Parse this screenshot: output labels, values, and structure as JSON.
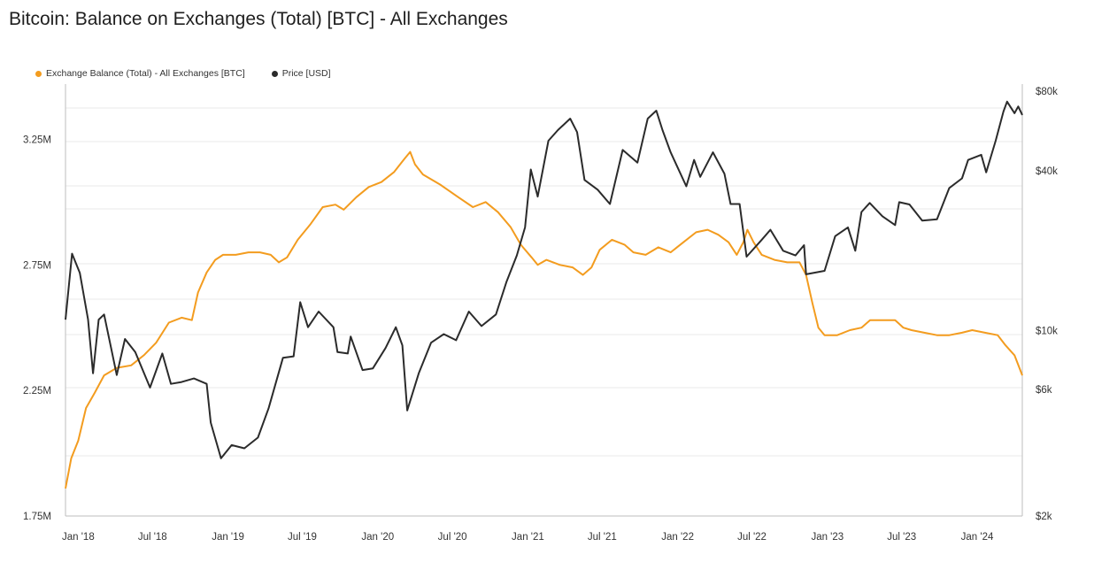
{
  "header": {
    "title": "Bitcoin: Balance on Exchanges (Total) [BTC] - All Exchanges"
  },
  "colors": {
    "balance": "#F39C1F",
    "price": "#2B2B2B",
    "grid": "#EAEAEA",
    "axis": "#BDBDBD"
  },
  "chart_data": {
    "type": "line",
    "title": "Bitcoin: Balance on Exchanges (Total) [BTC] - All Exchanges",
    "x_tick_labels": [
      "Jan '18",
      "Jul '18",
      "Jan '19",
      "Jul '19",
      "Jan '20",
      "Jul '20",
      "Jan '21",
      "Jul '21",
      "Jan '22",
      "Jul '22",
      "Jan '23",
      "Jul '23",
      "Jan '24"
    ],
    "x_range": [
      "2017-12-01",
      "2024-04-20"
    ],
    "y_left": {
      "ticks": [
        1.75,
        2.25,
        2.75,
        3.25
      ],
      "tick_labels": [
        "1.75M",
        "2.25M",
        "2.75M",
        "3.25M"
      ],
      "range": [
        1.75,
        3.47
      ]
    },
    "y_right": {
      "log": true,
      "ticks": [
        2000,
        6000,
        10000,
        40000,
        80000
      ],
      "tick_labels": [
        "$2k",
        "$6k",
        "$10k",
        "$40k",
        "$80k"
      ],
      "range": [
        2000,
        85000
      ]
    },
    "series": [
      {
        "name": "Exchange Balance (Total) - All Exchanges [BTC]",
        "axis": "left",
        "unit": "M BTC",
        "points": [
          [
            "2017-12-01",
            1.86
          ],
          [
            "2017-12-15",
            1.98
          ],
          [
            "2018-01-01",
            2.05
          ],
          [
            "2018-01-20",
            2.18
          ],
          [
            "2018-02-10",
            2.24
          ],
          [
            "2018-03-05",
            2.31
          ],
          [
            "2018-04-05",
            2.34
          ],
          [
            "2018-05-10",
            2.35
          ],
          [
            "2018-06-10",
            2.39
          ],
          [
            "2018-07-10",
            2.44
          ],
          [
            "2018-08-10",
            2.52
          ],
          [
            "2018-09-10",
            2.54
          ],
          [
            "2018-10-05",
            2.53
          ],
          [
            "2018-10-20",
            2.64
          ],
          [
            "2018-11-10",
            2.72
          ],
          [
            "2018-12-01",
            2.77
          ],
          [
            "2018-12-20",
            2.79
          ],
          [
            "2019-01-20",
            2.79
          ],
          [
            "2019-02-20",
            2.8
          ],
          [
            "2019-03-20",
            2.8
          ],
          [
            "2019-04-15",
            2.79
          ],
          [
            "2019-05-05",
            2.76
          ],
          [
            "2019-05-25",
            2.78
          ],
          [
            "2019-06-20",
            2.85
          ],
          [
            "2019-07-20",
            2.91
          ],
          [
            "2019-08-20",
            2.98
          ],
          [
            "2019-09-20",
            2.99
          ],
          [
            "2019-10-10",
            2.97
          ],
          [
            "2019-11-10",
            3.02
          ],
          [
            "2019-12-10",
            3.06
          ],
          [
            "2020-01-10",
            3.08
          ],
          [
            "2020-02-10",
            3.12
          ],
          [
            "2020-03-05",
            3.17
          ],
          [
            "2020-03-20",
            3.2
          ],
          [
            "2020-04-01",
            3.15
          ],
          [
            "2020-04-20",
            3.11
          ],
          [
            "2020-06-01",
            3.07
          ],
          [
            "2020-07-15",
            3.02
          ],
          [
            "2020-08-20",
            2.98
          ],
          [
            "2020-09-20",
            3.0
          ],
          [
            "2020-10-20",
            2.96
          ],
          [
            "2020-11-20",
            2.9
          ],
          [
            "2020-12-15",
            2.83
          ],
          [
            "2021-01-10",
            2.78
          ],
          [
            "2021-01-25",
            2.75
          ],
          [
            "2021-02-15",
            2.77
          ],
          [
            "2021-03-20",
            2.75
          ],
          [
            "2021-04-20",
            2.74
          ],
          [
            "2021-05-15",
            2.71
          ],
          [
            "2021-06-05",
            2.74
          ],
          [
            "2021-06-25",
            2.81
          ],
          [
            "2021-07-25",
            2.85
          ],
          [
            "2021-08-25",
            2.83
          ],
          [
            "2021-09-15",
            2.8
          ],
          [
            "2021-10-15",
            2.79
          ],
          [
            "2021-11-15",
            2.82
          ],
          [
            "2021-12-15",
            2.8
          ],
          [
            "2022-01-15",
            2.84
          ],
          [
            "2022-02-15",
            2.88
          ],
          [
            "2022-03-15",
            2.89
          ],
          [
            "2022-04-10",
            2.87
          ],
          [
            "2022-05-05",
            2.84
          ],
          [
            "2022-05-25",
            2.79
          ],
          [
            "2022-06-10",
            2.84
          ],
          [
            "2022-06-20",
            2.89
          ],
          [
            "2022-07-05",
            2.84
          ],
          [
            "2022-07-25",
            2.79
          ],
          [
            "2022-08-25",
            2.77
          ],
          [
            "2022-09-25",
            2.76
          ],
          [
            "2022-10-25",
            2.76
          ],
          [
            "2022-11-10",
            2.71
          ],
          [
            "2022-11-25",
            2.6
          ],
          [
            "2022-12-10",
            2.5
          ],
          [
            "2022-12-25",
            2.47
          ],
          [
            "2023-01-25",
            2.47
          ],
          [
            "2023-02-25",
            2.49
          ],
          [
            "2023-03-25",
            2.5
          ],
          [
            "2023-04-15",
            2.53
          ],
          [
            "2023-05-15",
            2.53
          ],
          [
            "2023-06-15",
            2.53
          ],
          [
            "2023-07-05",
            2.5
          ],
          [
            "2023-07-25",
            2.49
          ],
          [
            "2023-08-25",
            2.48
          ],
          [
            "2023-09-25",
            2.47
          ],
          [
            "2023-10-25",
            2.47
          ],
          [
            "2023-11-25",
            2.48
          ],
          [
            "2023-12-20",
            2.49
          ],
          [
            "2024-01-20",
            2.48
          ],
          [
            "2024-02-20",
            2.47
          ],
          [
            "2024-03-10",
            2.43
          ],
          [
            "2024-04-01",
            2.39
          ],
          [
            "2024-04-20",
            2.31
          ]
        ]
      },
      {
        "name": "Price [USD]",
        "axis": "right",
        "unit": "USD",
        "points": [
          [
            "2017-12-01",
            11000
          ],
          [
            "2017-12-17",
            19500
          ],
          [
            "2018-01-05",
            16500
          ],
          [
            "2018-01-25",
            11000
          ],
          [
            "2018-02-06",
            6900
          ],
          [
            "2018-02-20",
            11000
          ],
          [
            "2018-03-05",
            11500
          ],
          [
            "2018-04-05",
            6800
          ],
          [
            "2018-04-25",
            9300
          ],
          [
            "2018-05-20",
            8300
          ],
          [
            "2018-06-25",
            6100
          ],
          [
            "2018-07-25",
            8200
          ],
          [
            "2018-08-15",
            6300
          ],
          [
            "2018-09-10",
            6400
          ],
          [
            "2018-10-10",
            6600
          ],
          [
            "2018-11-10",
            6300
          ],
          [
            "2018-11-20",
            4500
          ],
          [
            "2018-12-15",
            3300
          ],
          [
            "2019-01-10",
            3700
          ],
          [
            "2019-02-10",
            3600
          ],
          [
            "2019-03-15",
            3950
          ],
          [
            "2019-04-10",
            5100
          ],
          [
            "2019-05-15",
            7900
          ],
          [
            "2019-06-10",
            8000
          ],
          [
            "2019-06-26",
            12800
          ],
          [
            "2019-07-15",
            10300
          ],
          [
            "2019-08-10",
            11800
          ],
          [
            "2019-09-15",
            10300
          ],
          [
            "2019-09-25",
            8300
          ],
          [
            "2019-10-20",
            8200
          ],
          [
            "2019-10-27",
            9500
          ],
          [
            "2019-11-25",
            7100
          ],
          [
            "2019-12-20",
            7200
          ],
          [
            "2020-01-20",
            8600
          ],
          [
            "2020-02-14",
            10300
          ],
          [
            "2020-03-01",
            8800
          ],
          [
            "2020-03-13",
            5000
          ],
          [
            "2020-04-10",
            6900
          ],
          [
            "2020-05-10",
            9000
          ],
          [
            "2020-06-10",
            9700
          ],
          [
            "2020-07-10",
            9200
          ],
          [
            "2020-08-10",
            11800
          ],
          [
            "2020-09-10",
            10400
          ],
          [
            "2020-10-15",
            11500
          ],
          [
            "2020-11-10",
            15300
          ],
          [
            "2020-12-05",
            19200
          ],
          [
            "2020-12-25",
            24500
          ],
          [
            "2021-01-08",
            40500
          ],
          [
            "2021-01-25",
            32000
          ],
          [
            "2021-02-20",
            52000
          ],
          [
            "2021-03-15",
            57000
          ],
          [
            "2021-04-14",
            63000
          ],
          [
            "2021-05-01",
            56000
          ],
          [
            "2021-05-19",
            37000
          ],
          [
            "2021-06-20",
            34000
          ],
          [
            "2021-07-20",
            30000
          ],
          [
            "2021-08-20",
            48000
          ],
          [
            "2021-09-25",
            43000
          ],
          [
            "2021-10-20",
            63000
          ],
          [
            "2021-11-10",
            67500
          ],
          [
            "2021-11-25",
            57000
          ],
          [
            "2021-12-15",
            47000
          ],
          [
            "2022-01-22",
            35000
          ],
          [
            "2022-02-10",
            44000
          ],
          [
            "2022-02-25",
            38000
          ],
          [
            "2022-03-28",
            47000
          ],
          [
            "2022-04-25",
            39000
          ],
          [
            "2022-05-10",
            30000
          ],
          [
            "2022-06-01",
            30000
          ],
          [
            "2022-06-18",
            19000
          ],
          [
            "2022-07-25",
            22000
          ],
          [
            "2022-08-15",
            24000
          ],
          [
            "2022-09-15",
            20000
          ],
          [
            "2022-10-15",
            19200
          ],
          [
            "2022-11-05",
            21000
          ],
          [
            "2022-11-10",
            16300
          ],
          [
            "2022-12-25",
            16800
          ],
          [
            "2023-01-20",
            22700
          ],
          [
            "2023-02-20",
            24500
          ],
          [
            "2023-03-10",
            20000
          ],
          [
            "2023-03-25",
            28000
          ],
          [
            "2023-04-14",
            30300
          ],
          [
            "2023-05-15",
            27000
          ],
          [
            "2023-06-15",
            25000
          ],
          [
            "2023-06-25",
            30500
          ],
          [
            "2023-07-20",
            29900
          ],
          [
            "2023-08-20",
            26000
          ],
          [
            "2023-09-25",
            26300
          ],
          [
            "2023-10-25",
            34500
          ],
          [
            "2023-11-25",
            37500
          ],
          [
            "2023-12-10",
            44000
          ],
          [
            "2024-01-11",
            46000
          ],
          [
            "2024-01-23",
            39500
          ],
          [
            "2024-02-15",
            52000
          ],
          [
            "2024-03-05",
            67000
          ],
          [
            "2024-03-14",
            73000
          ],
          [
            "2024-04-01",
            66000
          ],
          [
            "2024-04-10",
            70000
          ],
          [
            "2024-04-20",
            65000
          ]
        ]
      }
    ]
  }
}
